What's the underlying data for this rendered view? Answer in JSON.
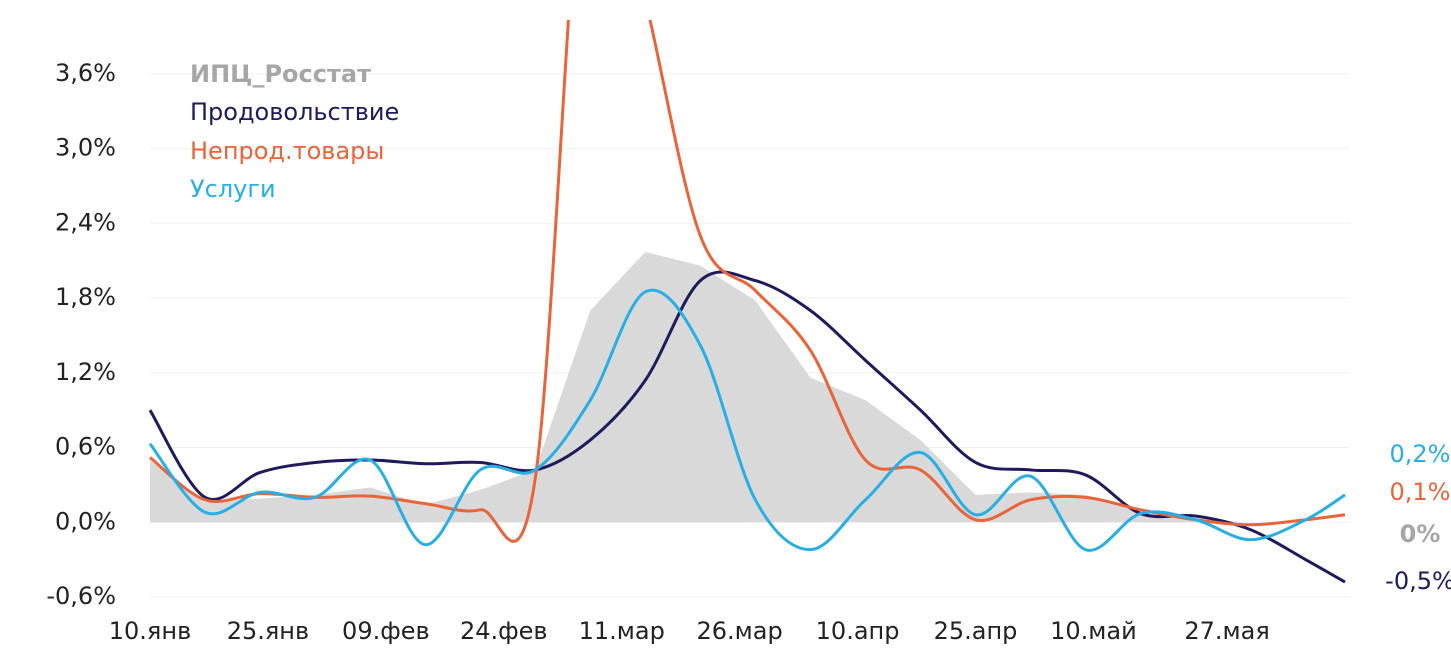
{
  "chart_data": {
    "type": "line",
    "x": [
      10,
      17,
      24,
      31,
      38,
      45,
      52,
      59,
      66,
      73,
      80,
      87,
      94,
      101,
      108,
      115,
      122,
      129,
      136,
      143,
      150,
      157,
      162
    ],
    "xlim": [
      10,
      162
    ],
    "xticks": [
      {
        "value": 10,
        "label": "10.янв"
      },
      {
        "value": 25,
        "label": "25.янв"
      },
      {
        "value": 40,
        "label": "09.фев"
      },
      {
        "value": 55,
        "label": "24.фев"
      },
      {
        "value": 70,
        "label": "11.мар"
      },
      {
        "value": 85,
        "label": "26.мар"
      },
      {
        "value": 100,
        "label": "10.апр"
      },
      {
        "value": 115,
        "label": "25.апр"
      },
      {
        "value": 130,
        "label": "10.май"
      },
      {
        "value": 147,
        "label": "27.мая"
      }
    ],
    "ylim": [
      -0.6,
      4.0
    ],
    "yticks": [
      {
        "value": -0.6,
        "label": "-0,6%"
      },
      {
        "value": 0,
        "label": "0,0%"
      },
      {
        "value": 0.6,
        "label": "0,6%"
      },
      {
        "value": 1.2,
        "label": "1,2%"
      },
      {
        "value": 1.8,
        "label": "1,8%"
      },
      {
        "value": 2.4,
        "label": "2,4%"
      },
      {
        "value": 3.0,
        "label": "3,0%"
      },
      {
        "value": 3.6,
        "label": "3,6%"
      }
    ],
    "grid": true,
    "legend": "upper left",
    "series": [
      {
        "name": "ИПЦ_Росстат",
        "color": "#d9d9d9",
        "style": "area",
        "values": [
          0.5,
          0.16,
          0.19,
          0.22,
          0.28,
          0.14,
          0.26,
          0.42,
          1.7,
          2.17,
          2.06,
          1.78,
          1.16,
          0.98,
          0.66,
          0.22,
          0.24,
          0.22,
          0.1,
          0.02,
          0,
          null,
          null
        ],
        "value_labels": [
          null,
          null,
          null,
          null,
          null,
          null,
          null,
          null,
          null,
          null,
          null,
          null,
          null,
          null,
          null,
          null,
          null,
          null,
          null,
          null,
          "0%",
          null,
          null
        ]
      },
      {
        "name": "Продовольствие",
        "color": "#1f1a5c",
        "style": "line",
        "values": [
          0.9,
          0.2,
          0.4,
          0.48,
          0.5,
          0.47,
          0.48,
          0.42,
          0.66,
          1.14,
          1.94,
          1.94,
          1.7,
          1.3,
          0.9,
          0.48,
          0.42,
          0.38,
          0.07,
          0.05,
          -0.06,
          -0.3,
          -0.48
        ],
        "value_labels": [
          null,
          null,
          null,
          null,
          null,
          null,
          null,
          null,
          null,
          null,
          null,
          null,
          null,
          null,
          null,
          null,
          null,
          null,
          null,
          null,
          null,
          null,
          "-0,5%"
        ]
      },
      {
        "name": "Непрод.товары",
        "color": "#e8643a",
        "style": "line",
        "values": [
          0.52,
          0.18,
          0.23,
          0.2,
          0.21,
          0.15,
          0.1,
          0.35,
          6.0,
          4.2,
          2.3,
          1.86,
          1.38,
          0.5,
          0.42,
          0.02,
          0.18,
          0.2,
          0.1,
          0.02,
          -0.02,
          0.02,
          0.06
        ],
        "value_labels": [
          null,
          null,
          null,
          null,
          null,
          null,
          null,
          null,
          null,
          null,
          null,
          null,
          null,
          null,
          null,
          null,
          null,
          null,
          null,
          null,
          null,
          null,
          "0,1%"
        ]
      },
      {
        "name": "Услуги",
        "color": "#29aee3",
        "style": "line",
        "values": [
          0.63,
          0.08,
          0.24,
          0.2,
          0.5,
          -0.18,
          0.42,
          0.42,
          0.98,
          1.85,
          1.42,
          0.18,
          -0.22,
          0.18,
          0.56,
          0.06,
          0.37,
          -0.22,
          0.07,
          0.02,
          -0.14,
          0.02,
          0.22
        ],
        "value_labels": [
          null,
          null,
          null,
          null,
          null,
          null,
          null,
          null,
          null,
          null,
          null,
          null,
          null,
          null,
          null,
          null,
          null,
          null,
          null,
          null,
          null,
          null,
          "0,2%"
        ]
      }
    ]
  }
}
